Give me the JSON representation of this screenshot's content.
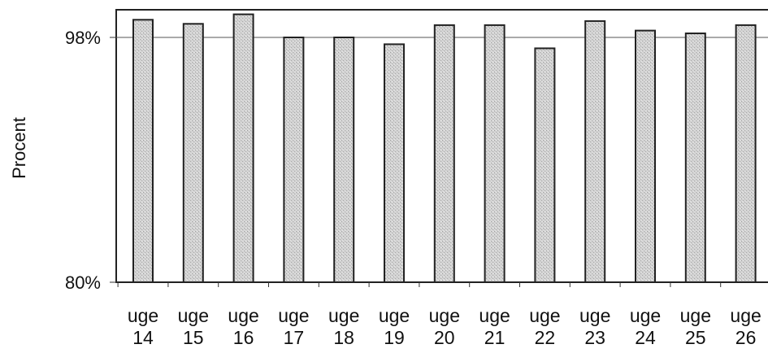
{
  "chart_data": {
    "type": "bar",
    "categories": [
      [
        "uge",
        "14"
      ],
      [
        "uge",
        "15"
      ],
      [
        "uge",
        "16"
      ],
      [
        "uge",
        "17"
      ],
      [
        "uge",
        "18"
      ],
      [
        "uge",
        "19"
      ],
      [
        "uge",
        "20"
      ],
      [
        "uge",
        "21"
      ],
      [
        "uge",
        "22"
      ],
      [
        "uge",
        "23"
      ],
      [
        "uge",
        "24"
      ],
      [
        "uge",
        "25"
      ],
      [
        "uge",
        "26"
      ]
    ],
    "values": [
      99.3,
      99.0,
      99.7,
      98.0,
      98.0,
      97.5,
      98.9,
      98.9,
      97.2,
      99.2,
      98.5,
      98.3,
      98.9
    ],
    "ylabel": "Procent",
    "ylim": [
      80,
      100
    ],
    "yticks": [
      {
        "value": 98,
        "label": "98%"
      },
      {
        "value": 80,
        "label": "80%"
      }
    ],
    "gridline_at": 98,
    "bar_color": "#cfcfcf",
    "bar_edge_color": "#222222",
    "legend": "none"
  }
}
